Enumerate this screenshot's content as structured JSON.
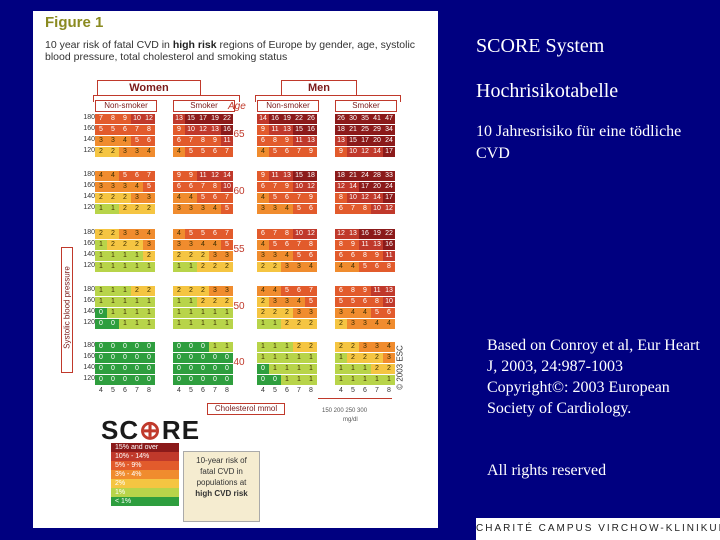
{
  "figure": {
    "title": "Figure 1",
    "caption_pre": "10 year risk of fatal CVD in ",
    "caption_bold": "high risk",
    "caption_post": " regions of Europe by gender, age, systolic blood pressure, total cholesterol and smoking status",
    "gender_women": "Women",
    "gender_men": "Men",
    "non_smoker": "Non-smoker",
    "smoker": "Smoker",
    "age_header": "Age",
    "systolic_label": "Systolic blood pressure",
    "copyright_vertical": "© 2003 ESC",
    "cholesterol_unit": "Cholesterol mmol",
    "mgdl_label": "150 200 250 300",
    "mgdl_unit": "mg/dl",
    "cholesterol_values": [
      "4",
      "5",
      "6",
      "7",
      "8"
    ],
    "bp_values": [
      "180",
      "160",
      "140",
      "120"
    ],
    "ages": [
      "65",
      "60",
      "55",
      "50",
      "40"
    ],
    "women_nonsmoker": [
      [
        [
          "7",
          "8",
          "9",
          "10",
          "12"
        ],
        [
          "5",
          "5",
          "6",
          "7",
          "8"
        ],
        [
          "3",
          "3",
          "4",
          "5",
          "6"
        ],
        [
          "2",
          "2",
          "3",
          "3",
          "4"
        ]
      ],
      [
        [
          "4",
          "4",
          "5",
          "6",
          "7"
        ],
        [
          "3",
          "3",
          "3",
          "4",
          "5"
        ],
        [
          "2",
          "2",
          "2",
          "3",
          "3"
        ],
        [
          "1",
          "1",
          "2",
          "2",
          "2"
        ]
      ],
      [
        [
          "2",
          "2",
          "3",
          "3",
          "4"
        ],
        [
          "1",
          "2",
          "2",
          "2",
          "3"
        ],
        [
          "1",
          "1",
          "1",
          "1",
          "2"
        ],
        [
          "1",
          "1",
          "1",
          "1",
          "1"
        ]
      ],
      [
        [
          "1",
          "1",
          "1",
          "2",
          "2"
        ],
        [
          "1",
          "1",
          "1",
          "1",
          "1"
        ],
        [
          "0",
          "1",
          "1",
          "1",
          "1"
        ],
        [
          "0",
          "0",
          "1",
          "1",
          "1"
        ]
      ],
      [
        [
          "0",
          "0",
          "0",
          "0",
          "0"
        ],
        [
          "0",
          "0",
          "0",
          "0",
          "0"
        ],
        [
          "0",
          "0",
          "0",
          "0",
          "0"
        ],
        [
          "0",
          "0",
          "0",
          "0",
          "0"
        ]
      ]
    ],
    "women_smoker": [
      [
        [
          "13",
          "15",
          "17",
          "19",
          "22"
        ],
        [
          "9",
          "10",
          "12",
          "13",
          "16"
        ],
        [
          "6",
          "7",
          "8",
          "9",
          "11"
        ],
        [
          "4",
          "5",
          "5",
          "6",
          "7"
        ]
      ],
      [
        [
          "9",
          "9",
          "11",
          "12",
          "14"
        ],
        [
          "6",
          "6",
          "7",
          "8",
          "10"
        ],
        [
          "4",
          "4",
          "5",
          "6",
          "7"
        ],
        [
          "3",
          "3",
          "3",
          "4",
          "5"
        ]
      ],
      [
        [
          "4",
          "5",
          "5",
          "6",
          "7"
        ],
        [
          "3",
          "3",
          "4",
          "4",
          "5"
        ],
        [
          "2",
          "2",
          "2",
          "3",
          "3"
        ],
        [
          "1",
          "1",
          "2",
          "2",
          "2"
        ]
      ],
      [
        [
          "2",
          "2",
          "2",
          "3",
          "3"
        ],
        [
          "1",
          "1",
          "2",
          "2",
          "2"
        ],
        [
          "1",
          "1",
          "1",
          "1",
          "1"
        ],
        [
          "1",
          "1",
          "1",
          "1",
          "1"
        ]
      ],
      [
        [
          "0",
          "0",
          "0",
          "1",
          "1"
        ],
        [
          "0",
          "0",
          "0",
          "0",
          "0"
        ],
        [
          "0",
          "0",
          "0",
          "0",
          "0"
        ],
        [
          "0",
          "0",
          "0",
          "0",
          "0"
        ]
      ]
    ],
    "men_nonsmoker": [
      [
        [
          "14",
          "16",
          "19",
          "22",
          "26"
        ],
        [
          "9",
          "11",
          "13",
          "15",
          "16"
        ],
        [
          "6",
          "8",
          "9",
          "11",
          "13"
        ],
        [
          "4",
          "5",
          "6",
          "7",
          "9"
        ]
      ],
      [
        [
          "9",
          "11",
          "13",
          "15",
          "18"
        ],
        [
          "6",
          "7",
          "9",
          "10",
          "12"
        ],
        [
          "4",
          "5",
          "6",
          "7",
          "9"
        ],
        [
          "3",
          "3",
          "4",
          "5",
          "6"
        ]
      ],
      [
        [
          "6",
          "7",
          "8",
          "10",
          "12"
        ],
        [
          "4",
          "5",
          "6",
          "7",
          "8"
        ],
        [
          "3",
          "3",
          "4",
          "5",
          "6"
        ],
        [
          "2",
          "2",
          "3",
          "3",
          "4"
        ]
      ],
      [
        [
          "4",
          "4",
          "5",
          "6",
          "7"
        ],
        [
          "2",
          "3",
          "3",
          "4",
          "5"
        ],
        [
          "2",
          "2",
          "2",
          "3",
          "3"
        ],
        [
          "1",
          "1",
          "2",
          "2",
          "2"
        ]
      ],
      [
        [
          "1",
          "1",
          "1",
          "2",
          "2"
        ],
        [
          "1",
          "1",
          "1",
          "1",
          "1"
        ],
        [
          "0",
          "1",
          "1",
          "1",
          "1"
        ],
        [
          "0",
          "0",
          "1",
          "1",
          "1"
        ]
      ]
    ],
    "men_smoker": [
      [
        [
          "26",
          "30",
          "35",
          "41",
          "47"
        ],
        [
          "18",
          "21",
          "25",
          "29",
          "34"
        ],
        [
          "13",
          "15",
          "17",
          "20",
          "24"
        ],
        [
          "9",
          "10",
          "12",
          "14",
          "17"
        ]
      ],
      [
        [
          "18",
          "21",
          "24",
          "28",
          "33"
        ],
        [
          "12",
          "14",
          "17",
          "20",
          "24"
        ],
        [
          "8",
          "10",
          "12",
          "14",
          "17"
        ],
        [
          "6",
          "7",
          "8",
          "10",
          "12"
        ]
      ],
      [
        [
          "12",
          "13",
          "16",
          "19",
          "22"
        ],
        [
          "8",
          "9",
          "11",
          "13",
          "16"
        ],
        [
          "6",
          "6",
          "8",
          "9",
          "11"
        ],
        [
          "4",
          "4",
          "5",
          "6",
          "8"
        ]
      ],
      [
        [
          "6",
          "8",
          "9",
          "11",
          "13"
        ],
        [
          "5",
          "5",
          "6",
          "8",
          "10"
        ],
        [
          "3",
          "4",
          "4",
          "5",
          "6"
        ],
        [
          "2",
          "3",
          "3",
          "4",
          "4"
        ]
      ],
      [
        [
          "2",
          "2",
          "3",
          "3",
          "4"
        ],
        [
          "1",
          "2",
          "2",
          "2",
          "3"
        ],
        [
          "1",
          "1",
          "1",
          "2",
          "2"
        ],
        [
          "1",
          "1",
          "1",
          "1",
          "1"
        ]
      ]
    ],
    "score_logo": "SCORE",
    "legend": [
      {
        "label": "15% and over",
        "color": "#8b1a1a"
      },
      {
        "label": "10% - 14%",
        "color": "#c0392b"
      },
      {
        "label": "5% - 9%",
        "color": "#e25b2c"
      },
      {
        "label": "3% - 4%",
        "color": "#f08c2e"
      },
      {
        "label": "2%",
        "color": "#f5c542"
      },
      {
        "label": "1%",
        "color": "#b8d44a"
      },
      {
        "label": "< 1%",
        "color": "#2e9e3e"
      }
    ],
    "legend_box_lines": [
      "10-year risk of",
      "fatal CVD in",
      "populations at",
      "high CVD risk"
    ]
  },
  "slide": {
    "title1": "SCORE System",
    "title2": "Hochrisikotabelle",
    "subtitle": "10 Jahresrisiko für eine tödliche CVD",
    "citation": "Based on Conroy et al, Eur Heart J, 2003, 24:987-1003 Copyright©: 2003 European Society of Cardiology.",
    "rights": "All rights reserved",
    "footer_logo": "CHARITÉ CAMPUS VIRCHOW-KLINIKUM"
  }
}
